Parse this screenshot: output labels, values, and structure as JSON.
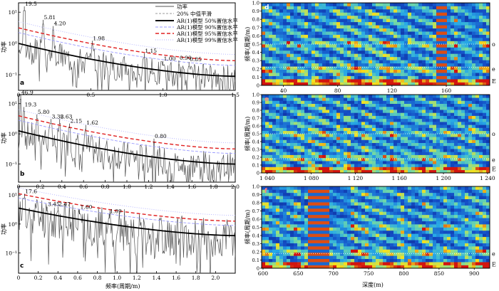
{
  "colors": {
    "power": "#555555",
    "smooth": "#9a9a9a",
    "ar50": "#000000",
    "ar90": "#9a9aff",
    "ar95": "#e02020",
    "ar99": "#b0b0ff",
    "spec_low": "#0a1f8f",
    "spec_mid": "#25a9e0",
    "spec_hi": "#f4e21e",
    "spec_max": "#d01010"
  },
  "legend": {
    "items": [
      {
        "label": "功率",
        "key": "power"
      },
      {
        "label": "20% 中值平滑",
        "key": "smooth"
      },
      {
        "label": "AR(1)模型 50%置信水平",
        "key": "ar50"
      },
      {
        "label": "AR(1)模型 90%置信水平",
        "key": "ar90"
      },
      {
        "label": "AR(1)模型 95%置信水平",
        "key": "ar95"
      },
      {
        "label": "AR(1)模型 99%置信水平",
        "key": "ar99"
      }
    ]
  },
  "chart_data": [
    {
      "id": "a",
      "type": "line",
      "panel_label": "a",
      "ylabel": "功率",
      "xlabel": "",
      "xlim": [
        0,
        1.5
      ],
      "x_ticks": [
        "0",
        "0.5",
        "1.0",
        "1.5"
      ],
      "x_tick_values": [
        0,
        0.5,
        1.0,
        1.5
      ],
      "ylim_log": [
        -1.5,
        1.3
      ],
      "y_ticks": [
        "10¹",
        "10⁰",
        "10⁻¹"
      ],
      "y_tick_values": [
        1,
        0,
        -1
      ],
      "ar_start": 0.0,
      "ar_end": -1.05,
      "noise_amp": 0.45,
      "seed": 3,
      "peaks": [
        {
          "x": 0.04,
          "y": 1.05,
          "label": "19.5"
        },
        {
          "x": 0.17,
          "y": 0.62,
          "label": "5.81"
        },
        {
          "x": 0.24,
          "y": 0.42,
          "label": "4.20"
        },
        {
          "x": 0.51,
          "y": -0.05,
          "label": "1.98"
        },
        {
          "x": 0.87,
          "y": -0.45,
          "label": "1.15"
        },
        {
          "x": 1.0,
          "y": -0.7,
          "label": "1.00"
        },
        {
          "x": 1.11,
          "y": -0.68,
          "label": "0.90"
        },
        {
          "x": 1.18,
          "y": -0.73,
          "label": "0.85"
        }
      ]
    },
    {
      "id": "b",
      "type": "line",
      "panel_label": "b",
      "ylabel": "功率",
      "xlabel": "",
      "xlim": [
        0,
        2.0
      ],
      "x_ticks": [
        "0",
        "0.2",
        "0.4",
        "0.6",
        "0.8",
        "1.0",
        "1.2",
        "1.4",
        "1.6",
        "1.8",
        "2.0"
      ],
      "x_tick_values": [
        0,
        0.2,
        0.4,
        0.6,
        0.8,
        1.0,
        1.2,
        1.4,
        1.6,
        1.8,
        2.0
      ],
      "ylim_log": [
        -1.6,
        1.3
      ],
      "y_ticks": [
        "10¹",
        "10⁰",
        "10⁻¹"
      ],
      "y_tick_values": [
        1,
        0,
        -1
      ],
      "ar_start": 0.1,
      "ar_end": -1.0,
      "noise_amp": 0.5,
      "seed": 7,
      "peaks": [
        {
          "x": 0.02,
          "y": 1.15,
          "label": "46.9"
        },
        {
          "x": 0.05,
          "y": 0.75,
          "label": "19.3"
        },
        {
          "x": 0.17,
          "y": 0.5,
          "label": "5.80"
        },
        {
          "x": 0.3,
          "y": 0.35,
          "label": "3.38"
        },
        {
          "x": 0.38,
          "y": 0.35,
          "label": "2.63"
        },
        {
          "x": 0.47,
          "y": 0.2,
          "label": "2.15"
        },
        {
          "x": 0.62,
          "y": 0.15,
          "label": "1.62"
        },
        {
          "x": 1.25,
          "y": -0.3,
          "label": "0.80"
        }
      ]
    },
    {
      "id": "c",
      "type": "line",
      "panel_label": "c",
      "ylabel": "功率",
      "xlabel": "频率(周期/m)",
      "xlim": [
        0,
        2.2
      ],
      "x_ticks": [
        "0",
        "0.2",
        "0.4",
        "0.6",
        "0.8",
        "1.0",
        "1.2",
        "1.4",
        "1.6",
        "1.8",
        "2.0"
      ],
      "x_tick_values": [
        0,
        0.2,
        0.4,
        0.6,
        0.8,
        1.0,
        1.2,
        1.4,
        1.6,
        1.8,
        2.0
      ],
      "ylim_log": [
        -1.7,
        1.3
      ],
      "y_ticks": [
        "10¹",
        "10⁰",
        "10⁻¹"
      ],
      "y_tick_values": [
        1,
        0,
        -1
      ],
      "ar_start": 0.55,
      "ar_end": -0.4,
      "noise_amp": 0.75,
      "seed": 11,
      "peaks": [
        {
          "x": 0.06,
          "y": 0.9,
          "label": "17.6"
        },
        {
          "x": 0.29,
          "y": 0.45,
          "label": "3.45"
        },
        {
          "x": 0.4,
          "y": 0.45,
          "label": "2.47"
        },
        {
          "x": 0.62,
          "y": 0.35,
          "label": "1.60"
        },
        {
          "x": 0.92,
          "y": 0.2,
          "label": "1.09"
        }
      ]
    },
    {
      "id": "d",
      "type": "heatmap",
      "panel_label": "d",
      "ylabel": "频率(周期/m)",
      "xlabel": "",
      "xlim": [
        24,
        192
      ],
      "x_ticks": [
        "40",
        "80",
        "120",
        "160"
      ],
      "x_tick_values": [
        40,
        80,
        120,
        160
      ],
      "ylim": [
        0,
        1.0
      ],
      "y_ticks": [
        "0",
        "0.1",
        "0.2",
        "0.3",
        "0.4",
        "0.5",
        "0.6",
        "0.7",
        "0.8",
        "0.9",
        "1.0"
      ],
      "y_tick_values": [
        0,
        0.1,
        0.2,
        0.3,
        0.4,
        0.5,
        0.6,
        0.7,
        0.8,
        0.9,
        1.0
      ],
      "band_labels": [
        {
          "label": "o",
          "y": 0.5
        },
        {
          "label": "e",
          "y": 0.2
        },
        {
          "label": "E",
          "y": 0.05
        }
      ],
      "dotted_lines": [
        0.5,
        0.22
      ],
      "seed": 5,
      "hot_columns": [
        {
          "x0": 152,
          "x1": 160
        }
      ]
    },
    {
      "id": "e",
      "type": "heatmap",
      "panel_label": "e",
      "ylabel": "频率(周期/m)",
      "xlabel": "",
      "xlim": [
        1035,
        1242
      ],
      "x_ticks": [
        "1 040",
        "1 080",
        "1 120",
        "1 160",
        "1 200",
        "1 240"
      ],
      "x_tick_values": [
        1040,
        1080,
        1120,
        1160,
        1200,
        1240
      ],
      "ylim": [
        0,
        1.0
      ],
      "y_ticks": [
        "0",
        "0.1",
        "0.2",
        "0.3",
        "0.4",
        "0.5",
        "0.6",
        "0.7",
        "0.8",
        "0.9",
        "1.0"
      ],
      "y_tick_values": [
        0,
        0.1,
        0.2,
        0.3,
        0.4,
        0.5,
        0.6,
        0.7,
        0.8,
        0.9,
        1.0
      ],
      "band_labels": [
        {
          "label": "o",
          "y": 0.5
        },
        {
          "label": "e",
          "y": 0.17
        },
        {
          "label": "E",
          "y": 0.05
        }
      ],
      "dotted_lines": [
        0.5,
        0.18
      ],
      "seed": 9,
      "hot_columns": []
    },
    {
      "id": "f",
      "type": "heatmap",
      "panel_label": "f",
      "ylabel": "频率(周期/m)",
      "xlabel": "深度(m)",
      "xlim": [
        598,
        922
      ],
      "x_ticks": [
        "600",
        "650",
        "700",
        "750",
        "800",
        "850",
        "900"
      ],
      "x_tick_values": [
        600,
        650,
        700,
        750,
        800,
        850,
        900
      ],
      "ylim": [
        0,
        1.0
      ],
      "y_ticks": [
        "0",
        "0.1",
        "0.2",
        "0.3",
        "0.4",
        "0.5",
        "0.6",
        "0.7",
        "0.8",
        "0.9",
        "1.0"
      ],
      "y_tick_values": [
        0,
        0.1,
        0.2,
        0.3,
        0.4,
        0.5,
        0.6,
        0.7,
        0.8,
        0.9,
        1.0
      ],
      "band_labels": [
        {
          "label": "e",
          "y": 0.18
        },
        {
          "label": "E",
          "y": 0.05
        }
      ],
      "dotted_lines": [
        0.18
      ],
      "seed": 13,
      "hot_columns": [
        {
          "x0": 665,
          "x1": 692
        }
      ]
    }
  ]
}
